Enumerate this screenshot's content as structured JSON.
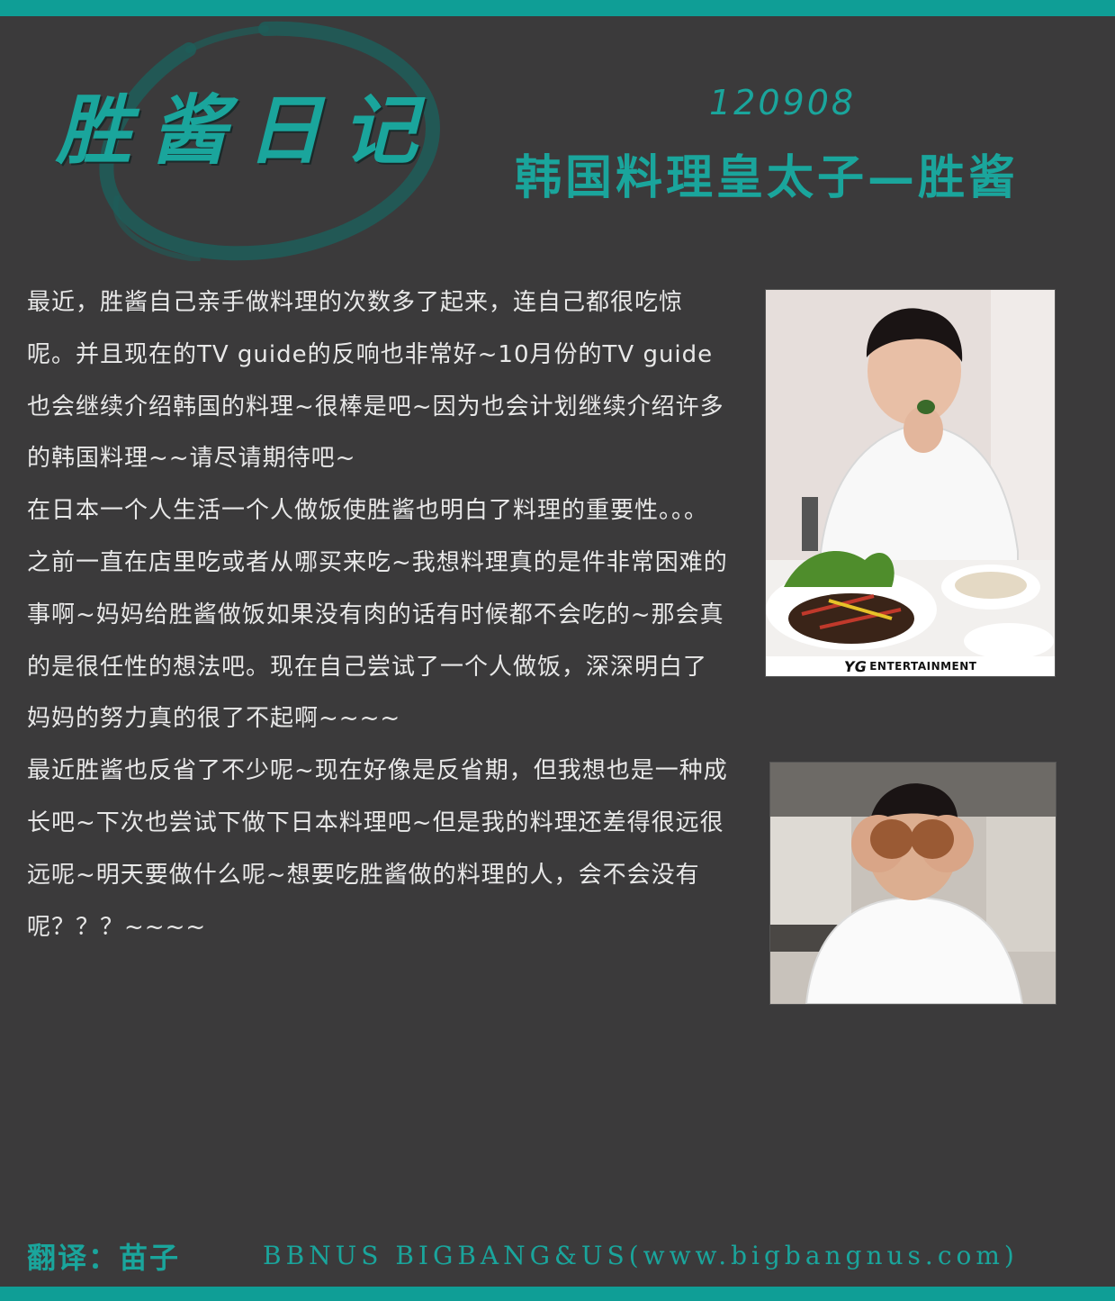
{
  "header": {
    "logo_title": "胜酱日记",
    "date": "120908",
    "subtitle": "韩国料理皇太子—胜酱"
  },
  "article": {
    "paragraphs": [
      "最近，胜酱自己亲手做料理的次数多了起来，连自己都很吃惊呢。并且现在的TV guide的反响也非常好~10月份的TV guide也会继续介绍韩国的料理~很棒是吧~因为也会计划继续介绍许多的韩国料理~~请尽请期待吧~",
      "在日本一个人生活一个人做饭使胜酱也明白了料理的重要性。。。之前一直在店里吃或者从哪买来吃~我想料理真的是件非常困难的事啊~妈妈给胜酱做饭如果没有肉的话有时候都不会吃的~那会真的是很任性的想法吧。现在自己尝试了一个人做饭，深深明白了妈妈的努力真的很了不起啊~~~~",
      "最近胜酱也反省了不少呢~现在好像是反省期，但我想也是一种成长吧~下次也尝试下做下日本料理吧~但是我的料理还差得很远很远呢~明天要做什么呢~想要吃胜酱做的料理的人，会不会没有呢？？？~~~~"
    ]
  },
  "photos": {
    "photo1": {
      "brand_logo": "YG",
      "brand_text": "ENTERTAINMENT"
    }
  },
  "footer": {
    "translator": "翻译：苗子",
    "site": "BBNUS BIGBANG&US(www.bigbangnus.com)"
  },
  "colors": {
    "background": "#3b3a3b",
    "accent": "#0f9e96",
    "text": "#e8e8e8"
  }
}
